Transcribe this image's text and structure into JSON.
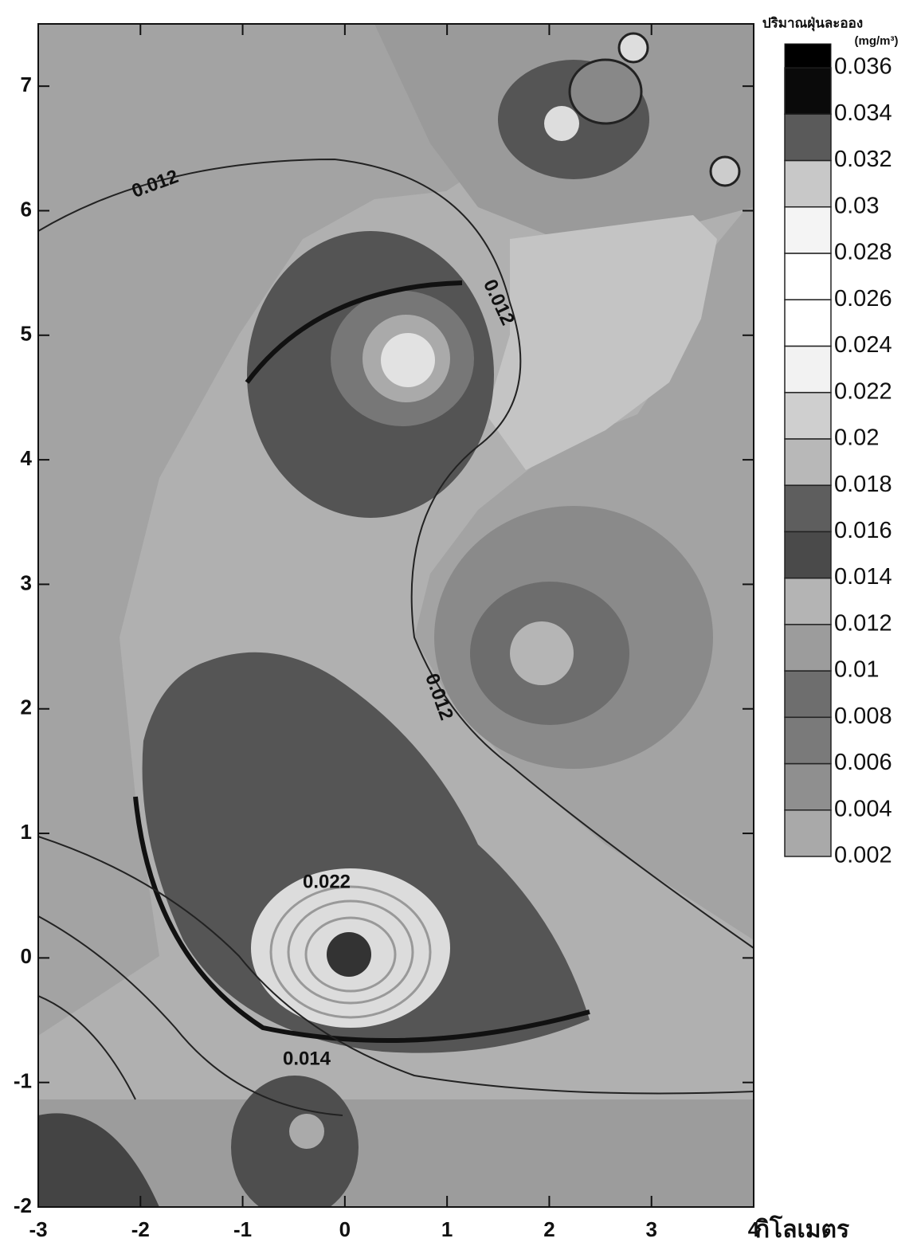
{
  "chart_data": {
    "type": "contour",
    "xlabel": "กิโลเมตร",
    "xlim": [
      -3,
      4
    ],
    "ylim": [
      -2,
      7.5
    ],
    "xticks": [
      -3,
      -2,
      -1,
      0,
      1,
      2,
      3,
      4
    ],
    "yticks": [
      -2,
      -1,
      0,
      1,
      2,
      3,
      4,
      5,
      6,
      7
    ],
    "contour_labels": [
      "0.012",
      "0.012",
      "0.012",
      "0.022",
      "0.014"
    ],
    "colorbar": {
      "title": "ปริมาณฝุ่นละออง",
      "unit": "(mg/m³)",
      "levels": [
        0.002,
        0.004,
        0.006,
        0.008,
        0.01,
        0.012,
        0.014,
        0.016,
        0.018,
        0.02,
        0.022,
        0.024,
        0.026,
        0.028,
        0.03,
        0.032,
        0.034,
        0.036
      ],
      "colors": [
        "#a9a9a9",
        "#8f8f8f",
        "#7a7a7a",
        "#6e6e6e",
        "#9c9c9c",
        "#b4b4b4",
        "#4a4a4a",
        "#5e5e5e",
        "#b8b8b8",
        "#cfcfcf",
        "#f2f2f2",
        "#ffffff",
        "#ffffff",
        "#f4f4f4",
        "#c8c8c8",
        "#5a5a5a",
        "#0a0a0a"
      ]
    }
  }
}
